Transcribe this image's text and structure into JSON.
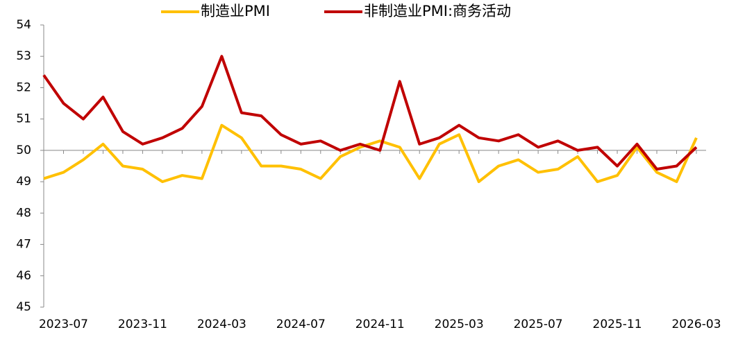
{
  "chart_data": {
    "type": "line",
    "categories": [
      null,
      "2023-07",
      null,
      null,
      null,
      "2023-11",
      null,
      null,
      null,
      "2024-03",
      null,
      null,
      null,
      "2024-07",
      null,
      null,
      null,
      "2024-11",
      null,
      null,
      null,
      "2025-03",
      null,
      null,
      null,
      "2025-07",
      null,
      null,
      null,
      "2025-11",
      null,
      null,
      null,
      "2026-03"
    ],
    "series": [
      {
        "name": "制造业PMI",
        "color": "#ffc000",
        "values": [
          49.1,
          49.3,
          49.7,
          50.2,
          49.5,
          49.4,
          49.0,
          49.2,
          49.1,
          50.8,
          50.4,
          49.5,
          49.5,
          49.4,
          49.1,
          49.8,
          50.1,
          50.3,
          50.1,
          49.1,
          50.2,
          50.5,
          49.0,
          49.5,
          49.7,
          49.3,
          49.4,
          49.8,
          49.0,
          49.2,
          50.1,
          49.3,
          49.0,
          50.4
        ]
      },
      {
        "name": "非制造业PMI:商务活动",
        "color": "#c00000",
        "values": [
          52.4,
          51.5,
          51.0,
          51.7,
          50.6,
          50.2,
          50.4,
          50.7,
          51.4,
          53.0,
          51.2,
          51.1,
          50.5,
          50.2,
          50.3,
          50.0,
          50.2,
          50.0,
          52.2,
          50.2,
          50.4,
          50.8,
          50.4,
          50.3,
          50.5,
          50.1,
          50.3,
          50.0,
          50.1,
          49.5,
          50.2,
          49.4,
          49.5,
          50.1
        ]
      }
    ],
    "ylim": [
      45,
      54
    ],
    "yticks": [
      45,
      46,
      47,
      48,
      49,
      50,
      51,
      52,
      53,
      54
    ],
    "x_axis_crossing": 50,
    "grid": false,
    "legend": "top"
  }
}
